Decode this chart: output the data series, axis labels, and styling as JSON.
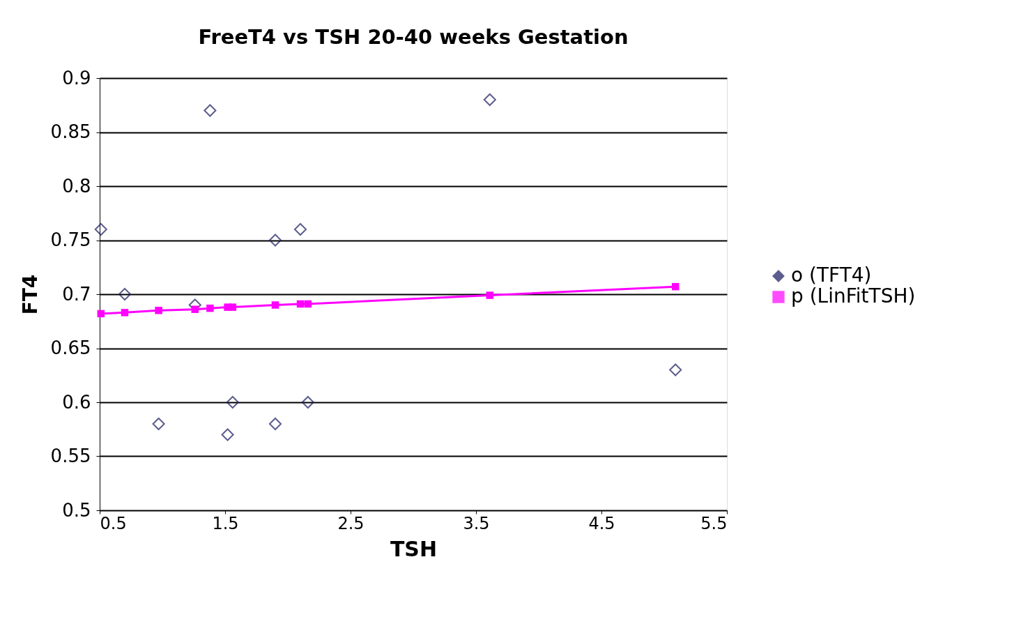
{
  "chart_data": {
    "type": "scatter",
    "title": "FreeT4 vs TSH 20-40 weeks Gestation",
    "xlabel": "TSH",
    "ylabel": "FT4",
    "xlim": [
      0.5,
      5.5
    ],
    "xticks": [
      0.5,
      1.5,
      2.5,
      3.5,
      4.5,
      5.5
    ],
    "ylim": [
      0.5,
      0.9
    ],
    "yticks": [
      0.5,
      0.55,
      0.6,
      0.65,
      0.7,
      0.75,
      0.8,
      0.85,
      0.9
    ],
    "grid": "y",
    "legend": "right",
    "series": [
      {
        "name": "o (TFT4)",
        "marker": "diamond",
        "color": "#1a1a5e",
        "x": [
          0.51,
          0.7,
          0.97,
          1.26,
          1.38,
          1.52,
          1.56,
          1.9,
          1.9,
          2.1,
          2.16,
          3.61,
          5.09
        ],
        "values": [
          0.76,
          0.7,
          0.58,
          0.69,
          0.87,
          0.57,
          0.6,
          0.75,
          0.58,
          0.76,
          0.6,
          0.88,
          0.63
        ]
      },
      {
        "name": "p (LinFitTSH)",
        "type": "line",
        "marker": "square",
        "color": "#ff00ff",
        "x": [
          0.51,
          0.7,
          0.97,
          1.26,
          1.38,
          1.52,
          1.56,
          1.9,
          2.1,
          2.16,
          3.61,
          5.09
        ],
        "values": [
          0.682,
          0.683,
          0.685,
          0.686,
          0.687,
          0.688,
          0.688,
          0.69,
          0.691,
          0.691,
          0.699,
          0.707
        ]
      }
    ]
  }
}
